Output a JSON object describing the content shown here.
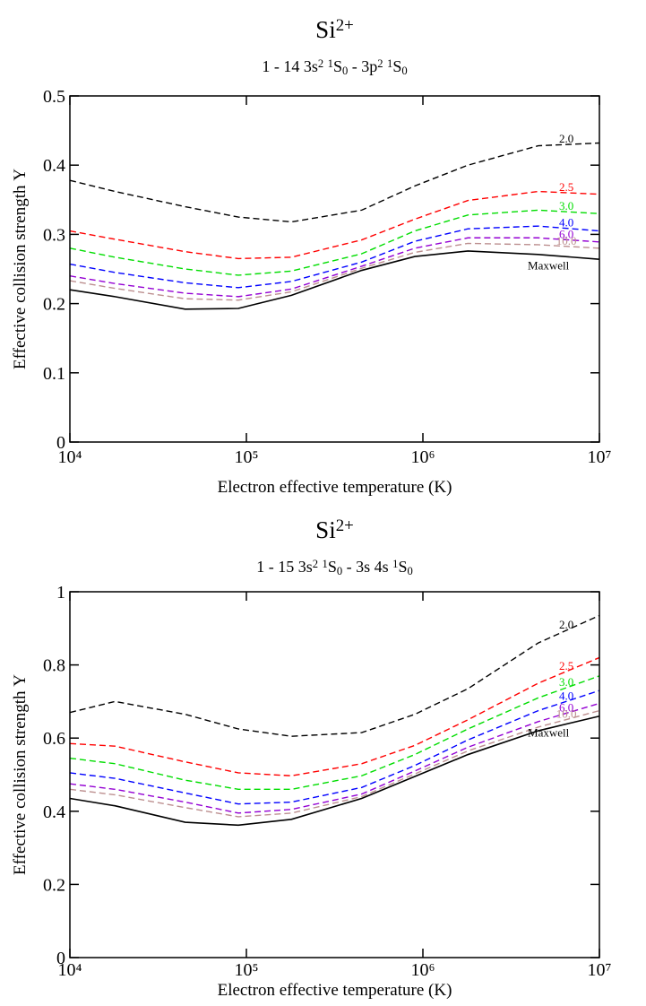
{
  "chart_data": [
    {
      "type": "line",
      "title": [
        {
          "text": "Si"
        },
        {
          "sup": "2+"
        }
      ],
      "subtitle": [
        {
          "text": "1 - 14   3s"
        },
        {
          "sup": "2"
        },
        {
          "text": " "
        },
        {
          "sup": "1"
        },
        {
          "text": "S"
        },
        {
          "sub": "0"
        },
        {
          "text": " - 3p"
        },
        {
          "sup": "2"
        },
        {
          "text": " "
        },
        {
          "sup": "1"
        },
        {
          "text": "S"
        },
        {
          "sub": "0"
        }
      ],
      "xlabel": "Electron effective temperature (K)",
      "ylabel": "Effective collision strength Υ",
      "xscale": "log",
      "xlim": [
        10000,
        10000000
      ],
      "xticks": [
        {
          "value": 10000,
          "label": "10⁴"
        },
        {
          "value": 100000,
          "label": "10⁵"
        },
        {
          "value": 1000000,
          "label": "10⁶"
        },
        {
          "value": 10000000,
          "label": "10⁷"
        }
      ],
      "ylim": [
        0,
        0.5
      ],
      "yticks": [
        0,
        0.1,
        0.2,
        0.3,
        0.4,
        0.5
      ],
      "x": [
        10000,
        18000,
        45000,
        90000,
        180000,
        450000,
        900000,
        1800000,
        4500000,
        10000000
      ],
      "series": [
        {
          "name": "2.0",
          "color": "#000000",
          "style": "dashed",
          "values": [
            0.378,
            0.362,
            0.34,
            0.325,
            0.318,
            0.335,
            0.37,
            0.4,
            0.428,
            0.432
          ]
        },
        {
          "name": "2.5",
          "color": "#ff0000",
          "style": "dashed",
          "values": [
            0.305,
            0.293,
            0.275,
            0.265,
            0.267,
            0.292,
            0.322,
            0.349,
            0.362,
            0.358
          ]
        },
        {
          "name": "3.0",
          "color": "#00dd00",
          "style": "dashed",
          "values": [
            0.28,
            0.267,
            0.25,
            0.241,
            0.247,
            0.272,
            0.305,
            0.328,
            0.335,
            0.33
          ]
        },
        {
          "name": "4.0",
          "color": "#0000ff",
          "style": "dashed",
          "values": [
            0.257,
            0.245,
            0.23,
            0.223,
            0.232,
            0.26,
            0.29,
            0.308,
            0.312,
            0.305
          ]
        },
        {
          "name": "6.0",
          "color": "#9400d3",
          "style": "dashed",
          "values": [
            0.24,
            0.229,
            0.215,
            0.21,
            0.221,
            0.254,
            0.28,
            0.295,
            0.295,
            0.289
          ]
        },
        {
          "name": "10.0",
          "color": "#bc8f8f",
          "style": "dashed",
          "values": [
            0.233,
            0.222,
            0.207,
            0.205,
            0.217,
            0.251,
            0.274,
            0.287,
            0.285,
            0.28
          ]
        },
        {
          "name": "Maxwell",
          "color": "#000000",
          "style": "solid",
          "values": [
            0.22,
            0.21,
            0.192,
            0.193,
            0.212,
            0.248,
            0.268,
            0.276,
            0.271,
            0.264
          ]
        }
      ]
    },
    {
      "type": "line",
      "title": [
        {
          "text": "Si"
        },
        {
          "sup": "2+"
        }
      ],
      "subtitle": [
        {
          "text": "1 - 15   3s"
        },
        {
          "sup": "2"
        },
        {
          "text": " "
        },
        {
          "sup": "1"
        },
        {
          "text": "S"
        },
        {
          "sub": "0"
        },
        {
          "text": " - 3s 4s "
        },
        {
          "sup": "1"
        },
        {
          "text": "S"
        },
        {
          "sub": "0"
        }
      ],
      "xlabel": "Electron effective temperature (K)",
      "ylabel": "Effective collision strength Υ",
      "xscale": "log",
      "xlim": [
        10000,
        10000000
      ],
      "xticks": [
        {
          "value": 10000,
          "label": "10⁴"
        },
        {
          "value": 100000,
          "label": "10⁵"
        },
        {
          "value": 1000000,
          "label": "10⁶"
        },
        {
          "value": 10000000,
          "label": "10⁷"
        }
      ],
      "ylim": [
        0,
        1
      ],
      "yticks": [
        0,
        0.2,
        0.4,
        0.6,
        0.8,
        1
      ],
      "x": [
        10000,
        18000,
        45000,
        90000,
        180000,
        450000,
        900000,
        1800000,
        4500000,
        10000000
      ],
      "series": [
        {
          "name": "2.0",
          "color": "#000000",
          "style": "dashed",
          "values": [
            0.67,
            0.7,
            0.665,
            0.625,
            0.605,
            0.615,
            0.665,
            0.735,
            0.86,
            0.935
          ]
        },
        {
          "name": "2.5",
          "color": "#ff0000",
          "style": "dashed",
          "values": [
            0.585,
            0.578,
            0.535,
            0.505,
            0.497,
            0.53,
            0.58,
            0.65,
            0.75,
            0.82
          ]
        },
        {
          "name": "3.0",
          "color": "#00dd00",
          "style": "dashed",
          "values": [
            0.545,
            0.53,
            0.485,
            0.46,
            0.46,
            0.497,
            0.555,
            0.625,
            0.71,
            0.77
          ]
        },
        {
          "name": "4.0",
          "color": "#0000ff",
          "style": "dashed",
          "values": [
            0.505,
            0.49,
            0.45,
            0.42,
            0.425,
            0.465,
            0.525,
            0.595,
            0.675,
            0.73
          ]
        },
        {
          "name": "6.0",
          "color": "#9400d3",
          "style": "dashed",
          "values": [
            0.475,
            0.46,
            0.425,
            0.395,
            0.405,
            0.447,
            0.51,
            0.575,
            0.645,
            0.695
          ]
        },
        {
          "name": "10.0",
          "color": "#bc8f8f",
          "style": "dashed",
          "values": [
            0.46,
            0.445,
            0.41,
            0.385,
            0.395,
            0.44,
            0.502,
            0.565,
            0.63,
            0.675
          ]
        },
        {
          "name": "Maxwell",
          "color": "#000000",
          "style": "solid",
          "values": [
            0.435,
            0.415,
            0.37,
            0.362,
            0.378,
            0.435,
            0.495,
            0.555,
            0.62,
            0.66
          ]
        }
      ]
    }
  ]
}
